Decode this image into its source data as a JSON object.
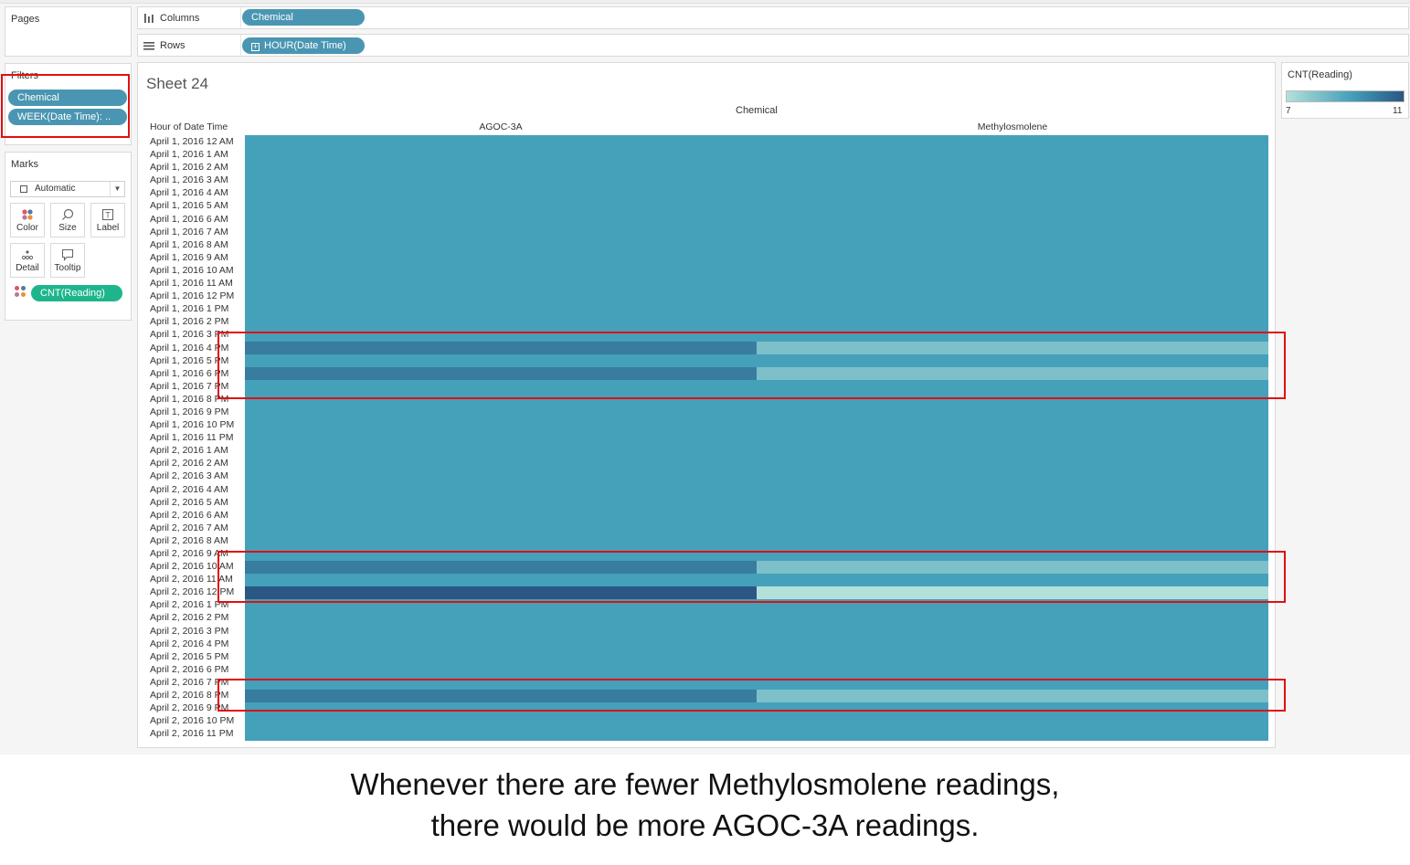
{
  "sidebar": {
    "pages_title": "Pages",
    "filters_title": "Filters",
    "filters": [
      "Chemical",
      "WEEK(Date Time): .."
    ],
    "marks_title": "Marks",
    "mark_type": "Automatic",
    "mark_buttons": [
      {
        "label": "Color",
        "icon": "color-icon"
      },
      {
        "label": "Size",
        "icon": "size-icon"
      },
      {
        "label": "Label",
        "icon": "label-icon"
      },
      {
        "label": "Detail",
        "icon": "detail-icon"
      },
      {
        "label": "Tooltip",
        "icon": "tooltip-icon"
      }
    ],
    "color_pill": "CNT(Reading)"
  },
  "shelves": {
    "columns_label": "Columns",
    "columns_pill": "Chemical",
    "rows_label": "Rows",
    "rows_pill": "HOUR(Date Time)"
  },
  "view": {
    "sheet_title": "Sheet 24",
    "column_axis_title": "Chemical",
    "row_header": "Hour of Date Time"
  },
  "legend": {
    "title": "CNT(Reading)",
    "min": "7",
    "max": "11",
    "color_low": "#b4e0da",
    "color_high": "#2a5783"
  },
  "chart_data": {
    "type": "heatmap",
    "measure": "CNT(Reading)",
    "columns": [
      "AGOC-3A",
      "Methylosmolene"
    ],
    "rows": [
      "April 1, 2016 12 AM",
      "April 1, 2016 1 AM",
      "April 1, 2016 2 AM",
      "April 1, 2016 3 AM",
      "April 1, 2016 4 AM",
      "April 1, 2016 5 AM",
      "April 1, 2016 6 AM",
      "April 1, 2016 7 AM",
      "April 1, 2016 8 AM",
      "April 1, 2016 9 AM",
      "April 1, 2016 10 AM",
      "April 1, 2016 11 AM",
      "April 1, 2016 12 PM",
      "April 1, 2016 1 PM",
      "April 1, 2016 2 PM",
      "April 1, 2016 3 PM",
      "April 1, 2016 4 PM",
      "April 1, 2016 5 PM",
      "April 1, 2016 6 PM",
      "April 1, 2016 7 PM",
      "April 1, 2016 8 PM",
      "April 1, 2016 9 PM",
      "April 1, 2016 10 PM",
      "April 1, 2016 11 PM",
      "April 2, 2016 1 AM",
      "April 2, 2016 2 AM",
      "April 2, 2016 3 AM",
      "April 2, 2016 4 AM",
      "April 2, 2016 5 AM",
      "April 2, 2016 6 AM",
      "April 2, 2016 7 AM",
      "April 2, 2016 8 AM",
      "April 2, 2016 9 AM",
      "April 2, 2016 10 AM",
      "April 2, 2016 11 AM",
      "April 2, 2016 12 PM",
      "April 2, 2016 1 PM",
      "April 2, 2016 2 PM",
      "April 2, 2016 3 PM",
      "April 2, 2016 4 PM",
      "April 2, 2016 5 PM",
      "April 2, 2016 6 PM",
      "April 2, 2016 7 PM",
      "April 2, 2016 8 PM",
      "April 2, 2016 9 PM",
      "April 2, 2016 10 PM",
      "April 2, 2016 11 PM"
    ],
    "values": [
      [
        9,
        9
      ],
      [
        9,
        9
      ],
      [
        9,
        9
      ],
      [
        9,
        9
      ],
      [
        9,
        9
      ],
      [
        9,
        9
      ],
      [
        9,
        9
      ],
      [
        9,
        9
      ],
      [
        9,
        9
      ],
      [
        9,
        9
      ],
      [
        9,
        9
      ],
      [
        9,
        9
      ],
      [
        9,
        9
      ],
      [
        9,
        9
      ],
      [
        9,
        9
      ],
      [
        9,
        9
      ],
      [
        10,
        8
      ],
      [
        9,
        9
      ],
      [
        10,
        8
      ],
      [
        9,
        9
      ],
      [
        9,
        9
      ],
      [
        9,
        9
      ],
      [
        9,
        9
      ],
      [
        9,
        9
      ],
      [
        9,
        9
      ],
      [
        9,
        9
      ],
      [
        9,
        9
      ],
      [
        9,
        9
      ],
      [
        9,
        9
      ],
      [
        9,
        9
      ],
      [
        9,
        9
      ],
      [
        9,
        9
      ],
      [
        9,
        9
      ],
      [
        10,
        8
      ],
      [
        9,
        9
      ],
      [
        11,
        7
      ],
      [
        9,
        9
      ],
      [
        9,
        9
      ],
      [
        9,
        9
      ],
      [
        9,
        9
      ],
      [
        9,
        9
      ],
      [
        9,
        9
      ],
      [
        9,
        9
      ],
      [
        10,
        8
      ],
      [
        9,
        9
      ],
      [
        9,
        9
      ],
      [
        9,
        9
      ]
    ],
    "color_range": [
      7,
      11
    ]
  },
  "caption": {
    "line1": "Whenever there are fewer Methylosmolene readings,",
    "line2": "there would be more AGOC-3A readings."
  }
}
